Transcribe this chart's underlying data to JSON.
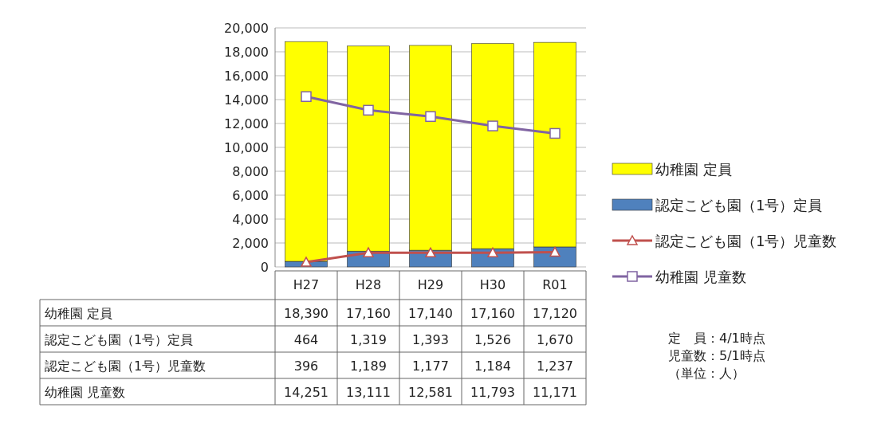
{
  "chart_data": {
    "type": "bar",
    "stacked": true,
    "categories": [
      "H27",
      "H28",
      "H29",
      "H30",
      "R01"
    ],
    "series": [
      {
        "name": "認定こども園（1号）定員",
        "color": "#4f81bd",
        "values": [
          464,
          1319,
          1393,
          1526,
          1670
        ],
        "value_labels": [
          "464",
          "1,319",
          "1,393",
          "1,526",
          "1,670"
        ]
      },
      {
        "name": "幼稚園 定員",
        "color": "#ffff00",
        "values": [
          18390,
          17160,
          17140,
          17160,
          17120
        ],
        "value_labels": [
          "18,390",
          "17,160",
          "17,140",
          "17,160",
          "17,120"
        ]
      },
      {
        "name": "認定こども園（1号）児童数",
        "type": "line",
        "marker": "triangle",
        "color": "#c0504d",
        "values": [
          396,
          1189,
          1177,
          1184,
          1237
        ],
        "value_labels": [
          "396",
          "1,189",
          "1,177",
          "1,184",
          "1,237"
        ]
      },
      {
        "name": "幼稚園 児童数",
        "type": "line",
        "marker": "square",
        "color": "#8064a2",
        "values": [
          14251,
          13111,
          12581,
          11793,
          11171
        ],
        "value_labels": [
          "14,251",
          "13,111",
          "12,581",
          "11,793",
          "11,171"
        ]
      }
    ],
    "ylim": [
      0,
      20000
    ],
    "yticks": [
      {
        "value": 0,
        "label": "0"
      },
      {
        "value": 2000,
        "label": "2,000"
      },
      {
        "value": 4000,
        "label": "4,000"
      },
      {
        "value": 6000,
        "label": "6,000"
      },
      {
        "value": 8000,
        "label": "8,000"
      },
      {
        "value": 10000,
        "label": "10,000"
      },
      {
        "value": 12000,
        "label": "12,000"
      },
      {
        "value": 14000,
        "label": "14,000"
      },
      {
        "value": 16000,
        "label": "16,000"
      },
      {
        "value": 18000,
        "label": "18,000"
      },
      {
        "value": 20000,
        "label": "20,000"
      }
    ],
    "grid": "y",
    "legend": "right",
    "annotations": [
      "定　員：4/1時点",
      "児童数：5/1時点",
      "（単位：人）"
    ]
  }
}
